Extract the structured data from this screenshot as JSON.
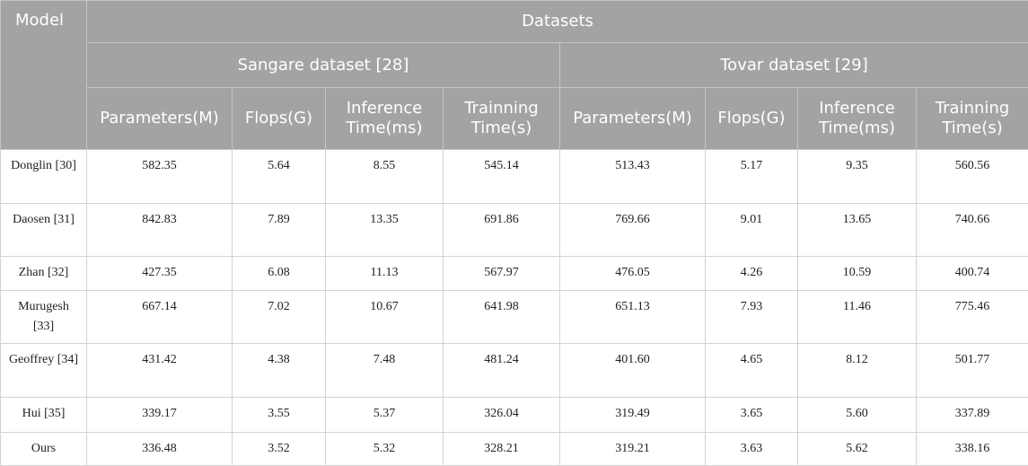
{
  "header": {
    "model": "Model",
    "datasets": "Datasets",
    "groups": [
      "Sangare dataset [28]",
      "Tovar dataset [29]"
    ],
    "columns": [
      "Parameters(M)",
      "Flops(G)",
      "Inference Time(ms)",
      "Trainning Time(s)",
      "Parameters(M)",
      "Flops(G)",
      "Inference Time(ms)",
      "Trainning Time(s)"
    ]
  },
  "table": {
    "rows": [
      [
        "Donglin [30]",
        "582.35",
        "5.64",
        "8.55",
        "545.14",
        "513.43",
        "5.17",
        "9.35",
        "560.56"
      ],
      [
        "Daosen [31]",
        "842.83",
        "7.89",
        "13.35",
        "691.86",
        "769.66",
        "9.01",
        "13.65",
        "740.66"
      ],
      [
        "Zhan [32]",
        "427.35",
        "6.08",
        "11.13",
        "567.97",
        "476.05",
        "4.26",
        "10.59",
        "400.74"
      ],
      [
        "Murugesh [33]",
        "667.14",
        "7.02",
        "10.67",
        "641.98",
        "651.13",
        "7.93",
        "11.46",
        "775.46"
      ],
      [
        "Geoffrey [34]",
        "431.42",
        "4.38",
        "7.48",
        "481.24",
        "401.60",
        "4.65",
        "8.12",
        "501.77"
      ],
      [
        "Hui [35]",
        "339.17",
        "3.55",
        "5.37",
        "326.04",
        "319.49",
        "3.65",
        "5.60",
        "337.89"
      ],
      [
        "Ours",
        "336.48",
        "3.52",
        "5.32",
        "328.21",
        "319.21",
        "3.63",
        "5.62",
        "338.16"
      ]
    ]
  }
}
